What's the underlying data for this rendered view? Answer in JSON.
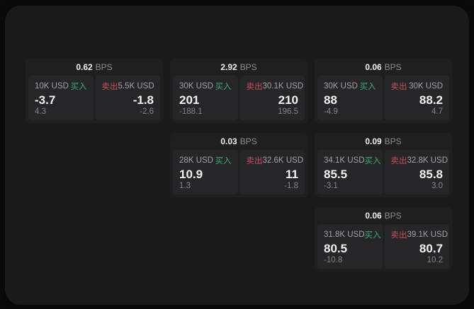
{
  "labels": {
    "bps": "BPS",
    "buy": "买入",
    "sell": "卖出"
  },
  "colors": {
    "buy": "#36b26e",
    "sell": "#c94f60",
    "card_bg": "#1f1f20",
    "panel_bg": "#262628",
    "container_bg": "#1a1a1b"
  },
  "cards": [
    {
      "bps": "0.62",
      "buy": {
        "size": "10K USD",
        "price": "-3.7",
        "change": "4.3"
      },
      "sell": {
        "size": "5.5K USD",
        "price": "-1.8",
        "change": "-2.6"
      }
    },
    {
      "bps": "2.92",
      "buy": {
        "size": "30K USD",
        "price": "201",
        "change": "-188.1"
      },
      "sell": {
        "size": "30.1K USD",
        "price": "210",
        "change": "196.5"
      }
    },
    {
      "bps": "0.06",
      "buy": {
        "size": "30K USD",
        "price": "88",
        "change": "-4.9"
      },
      "sell": {
        "size": "30K USD",
        "price": "88.2",
        "change": "4.7"
      }
    },
    {
      "bps": "0.03",
      "buy": {
        "size": "28K USD",
        "price": "10.9",
        "change": "1.3"
      },
      "sell": {
        "size": "32.6K USD",
        "price": "11",
        "change": "-1.8"
      }
    },
    {
      "bps": "0.09",
      "buy": {
        "size": "34.1K USD",
        "price": "85.5",
        "change": "-3.1"
      },
      "sell": {
        "size": "32.8K USD",
        "price": "85.8",
        "change": "3.0"
      }
    },
    {
      "bps": "0.06",
      "buy": {
        "size": "31.8K USD",
        "price": "80.5",
        "change": "-10.8"
      },
      "sell": {
        "size": "39.1K USD",
        "price": "80.7",
        "change": "10.2"
      }
    }
  ]
}
